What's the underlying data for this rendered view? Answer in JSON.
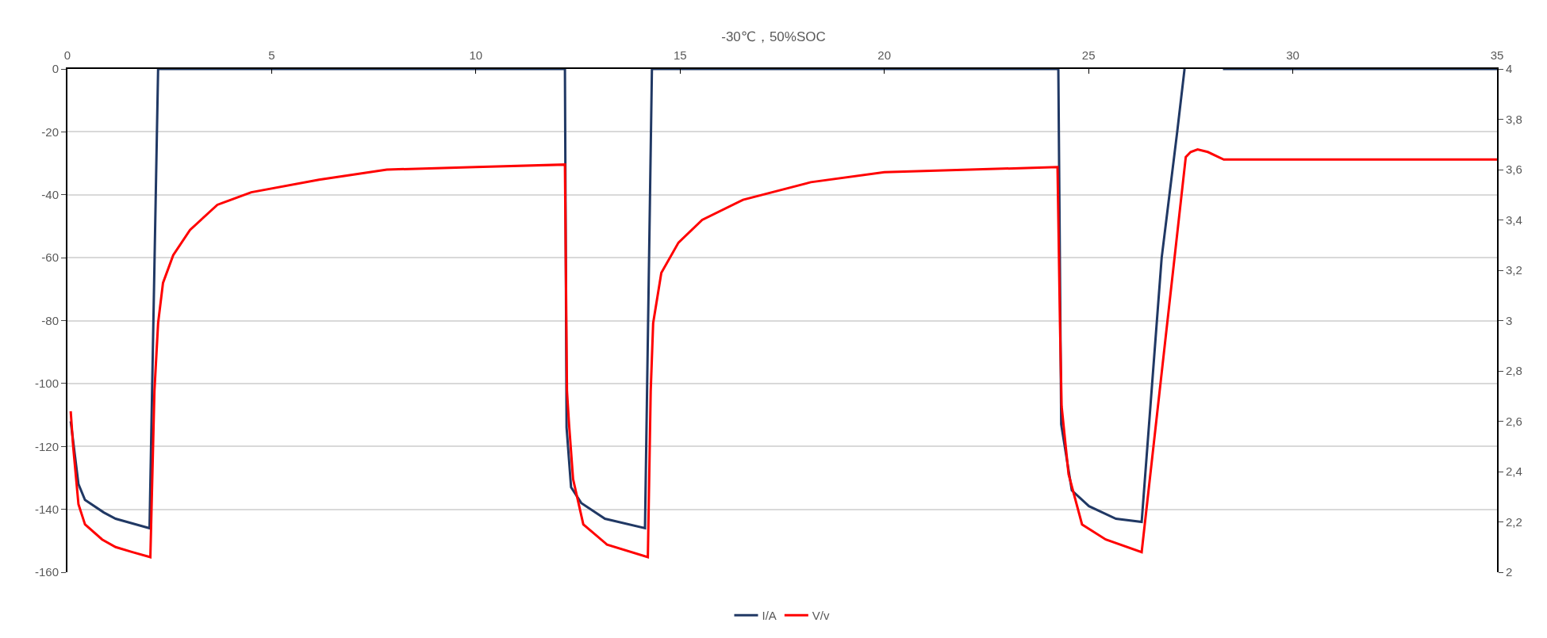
{
  "chart_data": {
    "type": "line",
    "title": "-30℃，50%SOC",
    "xlim": [
      0,
      35
    ],
    "xticks": [
      0,
      5,
      10,
      15,
      20,
      25,
      30,
      35
    ],
    "ylim": [
      -160,
      0
    ],
    "yticks": [
      -160,
      -140,
      -120,
      -100,
      -80,
      -60,
      -40,
      -20,
      0
    ],
    "y2lim": [
      2,
      4
    ],
    "y2ticks": [
      {
        "value": 2,
        "label": "2"
      },
      {
        "value": 2.2,
        "label": "2,2"
      },
      {
        "value": 2.4,
        "label": "2,4"
      },
      {
        "value": 2.6,
        "label": "2,6"
      },
      {
        "value": 2.8,
        "label": "2,8"
      },
      {
        "value": 3,
        "label": "3"
      },
      {
        "value": 3.2,
        "label": "3,2"
      },
      {
        "value": 3.4,
        "label": "3,4"
      },
      {
        "value": 3.6,
        "label": "3,6"
      },
      {
        "value": 3.8,
        "label": "3,8"
      },
      {
        "value": 4,
        "label": "4"
      }
    ],
    "grid": "y",
    "legend": "bottom",
    "marker": "none",
    "line_style": "solid",
    "series": [
      {
        "name": "I/A",
        "color": "#203864",
        "x": [
          0.08,
          0.27,
          0.43,
          0.89,
          1.18,
          2.01,
          2.22,
          12.1,
          12.18,
          12.22,
          12.33,
          12.58,
          13.16,
          14.14,
          14.31,
          24.2,
          24.26,
          24.33,
          24.59,
          25.01,
          25.67,
          26.3,
          26.79,
          27.17,
          27.35,
          27.4,
          28.29,
          35
        ],
        "values": [
          -112,
          -132,
          -137,
          -141,
          -143,
          -146,
          0,
          0,
          0,
          -114,
          -133,
          -138,
          -143,
          -146,
          0,
          0,
          0,
          -113,
          -134,
          -139,
          -143,
          -144,
          -60,
          -20,
          0,
          null,
          0,
          0
        ]
      },
      {
        "name": "V/v",
        "color": "#ff0000",
        "axis": "y2",
        "x": [
          0.08,
          0.14,
          0.27,
          0.43,
          0.85,
          1.18,
          1.59,
          2.03,
          2.13,
          2.22,
          2.34,
          2.59,
          3.0,
          3.67,
          4.5,
          6.16,
          7.82,
          10,
          12.18,
          12.23,
          12.28,
          12.38,
          12.63,
          13.21,
          14.21,
          14.28,
          14.34,
          14.54,
          14.96,
          15.54,
          16.54,
          18.2,
          20,
          24.24,
          24.3,
          24.34,
          24.51,
          24.84,
          25.42,
          26.3,
          27.38,
          27.5,
          27.67,
          27.92,
          28.31,
          35
        ],
        "values": [
          2.64,
          2.5,
          2.27,
          2.19,
          2.13,
          2.1,
          2.08,
          2.06,
          2.72,
          2.99,
          3.15,
          3.26,
          3.36,
          3.46,
          3.51,
          3.56,
          3.6,
          3.61,
          3.62,
          2.72,
          2.59,
          2.37,
          2.19,
          2.11,
          2.06,
          2.72,
          2.99,
          3.19,
          3.31,
          3.4,
          3.48,
          3.55,
          3.59,
          3.61,
          2.99,
          2.66,
          2.39,
          2.19,
          2.13,
          2.08,
          3.65,
          3.67,
          3.68,
          3.67,
          3.64,
          3.64
        ]
      }
    ]
  }
}
